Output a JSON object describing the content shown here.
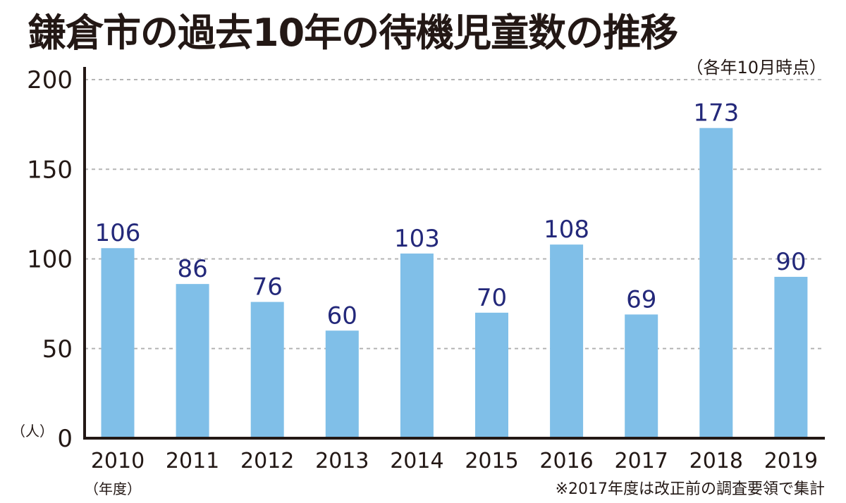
{
  "chart_data": {
    "type": "bar",
    "title": "鎌倉市の過去10年の待機児童数の推移",
    "subtitle": "（各年10月時点）",
    "ylabel": "（人）",
    "xlabel": "（年度）",
    "footnote": "※2017年度は改正前の調査要領で集計",
    "categories": [
      "2010",
      "2011",
      "2012",
      "2013",
      "2014",
      "2015",
      "2016",
      "2017",
      "2018",
      "2019"
    ],
    "values": [
      106,
      86,
      76,
      60,
      103,
      70,
      108,
      69,
      173,
      90
    ],
    "ylim": [
      0,
      200
    ],
    "yticks": [
      0,
      50,
      100,
      150,
      200
    ],
    "grid": true,
    "colors": {
      "bar": "#80bfe8",
      "label": "#23287a",
      "axis": "#231815",
      "grid": "#b5b5b5"
    }
  }
}
